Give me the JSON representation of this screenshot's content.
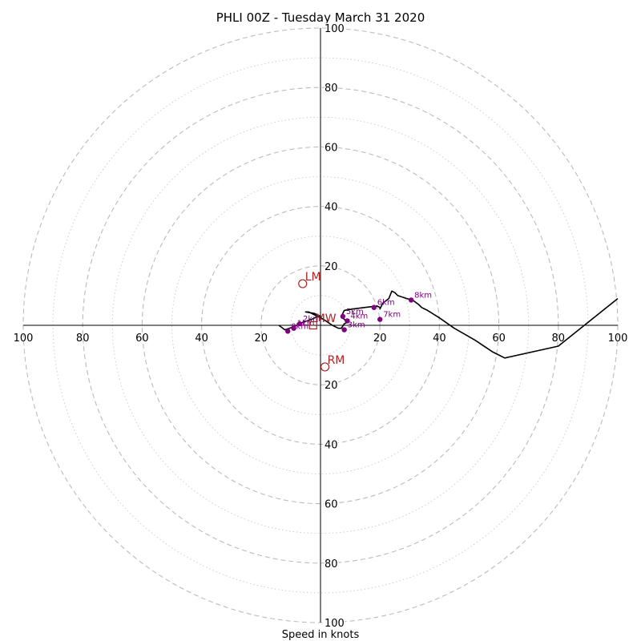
{
  "chart_data": {
    "type": "scatter",
    "title": "PHLI 00Z - Tuesday March 31 2020",
    "xlabel": "Speed in knots",
    "ylabel": "",
    "xlim": [
      -100,
      100
    ],
    "ylim": [
      -100,
      100
    ],
    "grid": true,
    "major_rings": [
      20,
      40,
      60,
      80,
      100
    ],
    "minor_rings": [
      10,
      30,
      50,
      70,
      90
    ],
    "tick_values": [
      100,
      80,
      60,
      40,
      20
    ],
    "hodograph_trace": [
      [
        -14,
        0
      ],
      [
        -12,
        -1.5
      ],
      [
        -9,
        -0.5
      ],
      [
        -6,
        1
      ],
      [
        -3,
        2
      ],
      [
        -1,
        3
      ],
      [
        0,
        3
      ],
      [
        -2,
        4
      ],
      [
        -5,
        4.5
      ],
      [
        -4,
        4.5
      ],
      [
        1,
        2
      ],
      [
        4,
        0
      ],
      [
        6,
        -1
      ],
      [
        7,
        -1
      ],
      [
        8,
        0.5
      ],
      [
        9,
        1
      ],
      [
        8,
        2
      ],
      [
        7,
        3
      ],
      [
        8,
        5
      ],
      [
        11,
        5.5
      ],
      [
        15,
        6
      ],
      [
        19,
        6.5
      ],
      [
        20,
        6
      ],
      [
        20,
        5.5
      ],
      [
        21,
        7.5
      ],
      [
        23,
        9
      ],
      [
        24,
        11.5
      ],
      [
        25,
        11
      ],
      [
        26,
        10
      ],
      [
        29,
        9
      ],
      [
        31,
        8.5
      ],
      [
        33,
        7
      ],
      [
        34,
        6
      ],
      [
        36,
        5
      ],
      [
        40,
        2.5
      ],
      [
        45,
        -1
      ],
      [
        52,
        -5
      ],
      [
        58,
        -9
      ],
      [
        62,
        -11
      ],
      [
        80,
        -7
      ],
      [
        100,
        9
      ]
    ],
    "height_points": [
      {
        "label": "0km",
        "u": -11,
        "v": -2
      },
      {
        "label": "1km",
        "u": -9,
        "v": -1
      },
      {
        "label": "2km",
        "u": -7,
        "v": 0.5
      },
      {
        "label": "3km",
        "u": 8,
        "v": -1.5
      },
      {
        "label": "4km",
        "u": 9,
        "v": 1.5
      },
      {
        "label": "5km",
        "u": 7.5,
        "v": 3
      },
      {
        "label": "6km",
        "u": 18,
        "v": 6
      },
      {
        "label": "7km",
        "u": 20,
        "v": 2
      },
      {
        "label": "8km",
        "u": 30.5,
        "v": 8.5
      }
    ],
    "storm_motions": [
      {
        "label": "LM",
        "u": -6,
        "v": 14,
        "marker": "circle"
      },
      {
        "label": "RM",
        "u": 1.5,
        "v": -14,
        "marker": "circle"
      },
      {
        "label": "MW",
        "u": -2.5,
        "v": 0,
        "marker": "square"
      }
    ],
    "colors": {
      "trace": "#000000",
      "height_points": "#800080",
      "storm_motion": "#b22222",
      "grid": "#bbbbbb"
    }
  }
}
